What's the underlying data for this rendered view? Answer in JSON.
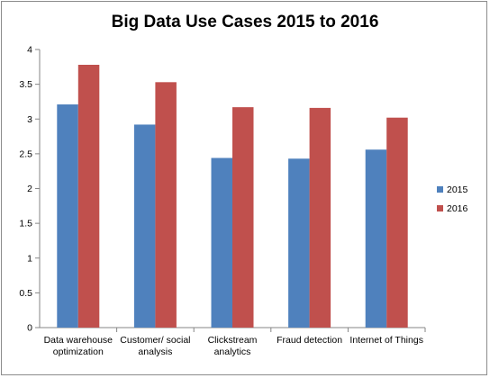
{
  "chart_data": {
    "type": "bar",
    "title": "Big Data Use Cases 2015 to 2016",
    "categories": [
      [
        "Data warehouse",
        "optimization"
      ],
      [
        "Customer/ social",
        "analysis"
      ],
      [
        "Clickstream",
        "analytics"
      ],
      [
        "Fraud detection"
      ],
      [
        "Internet of Things"
      ]
    ],
    "series": [
      {
        "name": "2015",
        "color": "#4f81bd",
        "values": [
          3.21,
          2.92,
          2.44,
          2.43,
          2.56
        ]
      },
      {
        "name": "2016",
        "color": "#c0504d",
        "values": [
          3.78,
          3.53,
          3.17,
          3.16,
          3.02
        ]
      }
    ],
    "yticks": [
      "0",
      "0.5",
      "1",
      "1.5",
      "2",
      "2.5",
      "3",
      "3.5",
      "4"
    ],
    "ylim": [
      0,
      4
    ],
    "grid": false,
    "legend": "right"
  }
}
